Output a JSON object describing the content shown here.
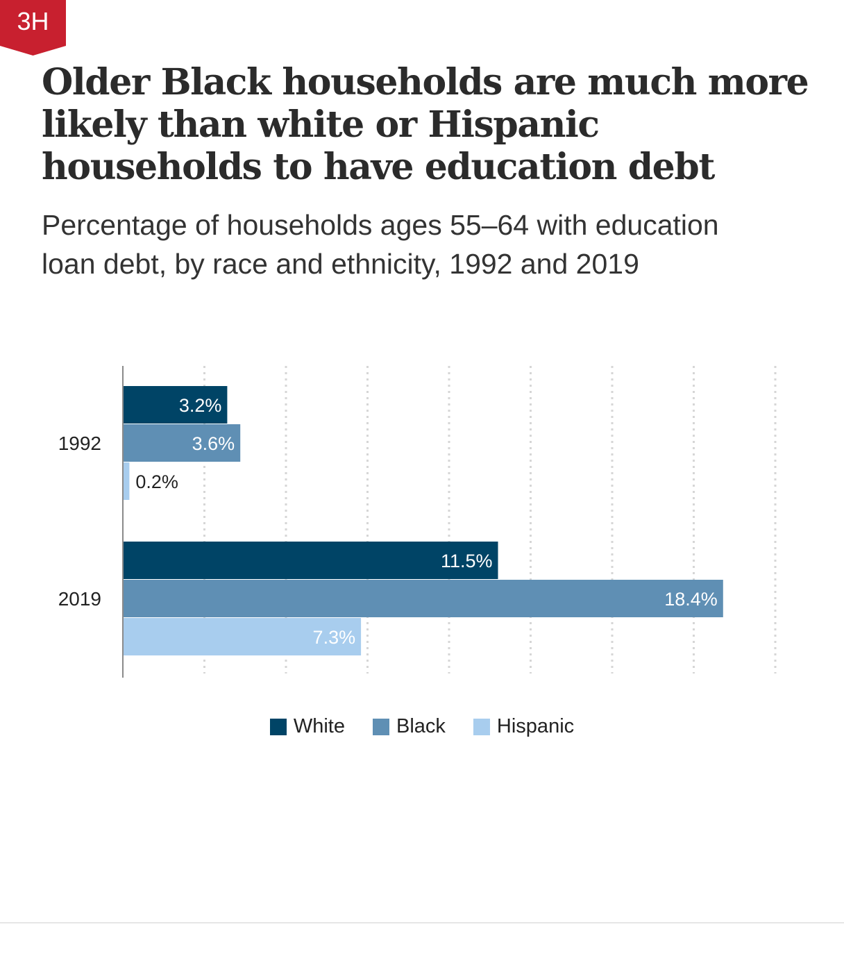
{
  "badge": {
    "label": "3H",
    "color": "#c8202f"
  },
  "title": "Older Black households are much more likely than white or Hispanic households to have education debt",
  "subtitle": "Percentage of households ages 55–64 with education loan debt, by race and ethnicity, 1992 and 2019",
  "legend": [
    {
      "label": "White",
      "color": "#004466"
    },
    {
      "label": "Black",
      "color": "#5f8fb4"
    },
    {
      "label": "Hispanic",
      "color": "#a8cdee"
    }
  ],
  "chart_data": {
    "type": "bar",
    "orientation": "horizontal",
    "categories": [
      "1992",
      "2019"
    ],
    "series": [
      {
        "name": "White",
        "values": [
          3.2,
          11.5
        ],
        "labels": [
          "3.2%",
          "11.5%"
        ],
        "color": "#004466"
      },
      {
        "name": "Black",
        "values": [
          3.6,
          18.4
        ],
        "labels": [
          "3.6%",
          "18.4%"
        ],
        "color": "#5f8fb4"
      },
      {
        "name": "Hispanic",
        "values": [
          0.2,
          7.3
        ],
        "labels": [
          "0.2%",
          "7.3%"
        ],
        "color": "#a8cdee"
      }
    ],
    "xlim": [
      0,
      20
    ],
    "grid": true,
    "legend_position": "bottom"
  }
}
